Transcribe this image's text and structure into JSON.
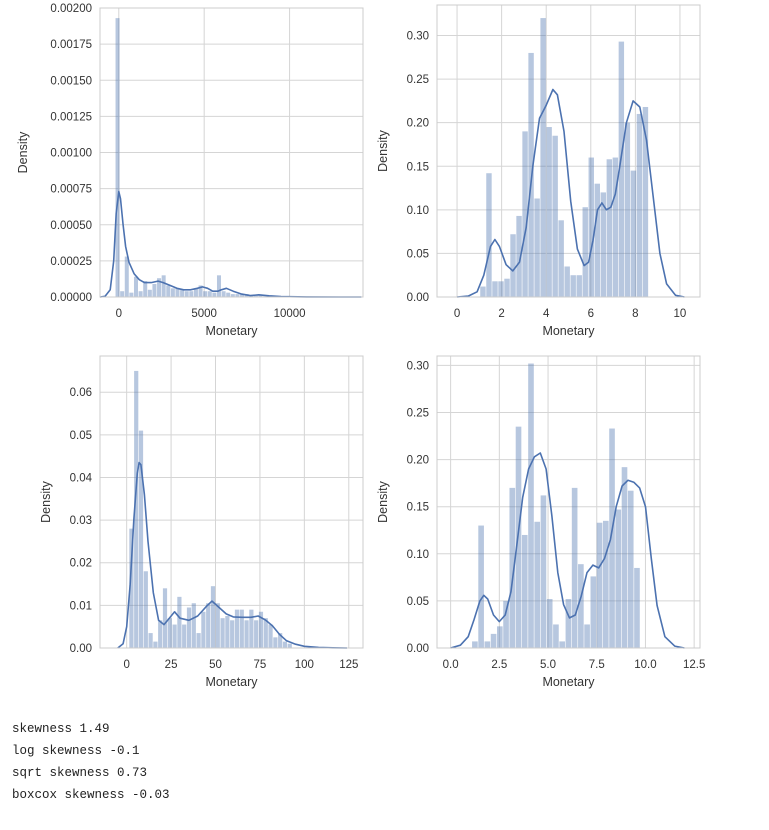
{
  "chart_data": [
    {
      "type": "histogram",
      "xlabel": "Monetary",
      "ylabel": "Density",
      "xlim": [
        -1100,
        14300
      ],
      "ylim": [
        0,
        0.002
      ],
      "xticks": [
        0,
        5000,
        10000
      ],
      "xtick_labels": [
        "0",
        "5000",
        "10000"
      ],
      "yticks": [
        0,
        0.00025,
        0.0005,
        0.00075,
        0.001,
        0.00125,
        0.0015,
        0.00175,
        0.002
      ],
      "ytick_labels": [
        "0.00000",
        "0.00025",
        "0.00050",
        "0.00075",
        "0.00100",
        "0.00125",
        "0.00150",
        "0.00175",
        "0.00200"
      ],
      "grid": true,
      "bin_edges": [
        -190,
        80,
        350,
        620,
        890,
        1160,
        1430,
        1700,
        1970,
        2240,
        2510,
        2780,
        3050,
        3320,
        3590,
        3860,
        4130,
        4400,
        4670,
        4940,
        5210,
        5480,
        5750,
        6020,
        6290,
        6560,
        6830,
        7100,
        7370,
        7640,
        7910,
        8180,
        8450,
        8720,
        8990,
        9260,
        9530,
        9800,
        10070
      ],
      "bin_heights": [
        0.00193,
        4e-05,
        0.00028,
        3e-05,
        0.00014,
        4e-05,
        0.00011,
        5e-05,
        9e-05,
        0.00013,
        0.00015,
        8e-05,
        6e-05,
        6e-05,
        5e-05,
        4e-05,
        4e-05,
        6e-05,
        8e-05,
        4e-05,
        4e-05,
        3e-05,
        0.00015,
        4e-05,
        3e-05,
        2e-05,
        2e-05,
        2e-05,
        2e-05,
        1e-05,
        1e-05,
        1e-05,
        5e-06,
        5e-06,
        5e-06,
        5e-06,
        3e-06,
        3e-06
      ],
      "kde_x": [
        -1200,
        -800,
        -500,
        -300,
        -150,
        0,
        100,
        250,
        400,
        600,
        900,
        1200,
        1500,
        1900,
        2300,
        2600,
        3000,
        3400,
        3800,
        4200,
        4600,
        4900,
        5200,
        5500,
        5800,
        6000,
        6300,
        6700,
        7200,
        7700,
        8200,
        8800,
        9500,
        11000,
        13000,
        14200
      ],
      "kde_y": [
        0.0,
        5e-06,
        5e-05,
        0.00025,
        0.00058,
        0.00073,
        0.00068,
        0.0005,
        0.00035,
        0.00024,
        0.00016,
        0.00012,
        0.0001,
        0.0001,
        0.00011,
        0.0001,
        8e-05,
        6e-05,
        5e-05,
        5e-05,
        6e-05,
        7e-05,
        6e-05,
        4e-05,
        4e-05,
        5e-05,
        6e-05,
        4e-05,
        2e-05,
        1e-05,
        1.5e-05,
        8e-06,
        3e-06,
        1e-06,
        0.0,
        0.0
      ]
    },
    {
      "type": "histogram",
      "xlabel": "Monetary",
      "ylabel": "Density",
      "xlim": [
        -0.9,
        10.9
      ],
      "ylim": [
        0,
        0.335
      ],
      "xticks": [
        0,
        2,
        4,
        6,
        8,
        10
      ],
      "xtick_labels": [
        "0",
        "2",
        "4",
        "6",
        "8",
        "10"
      ],
      "yticks": [
        0,
        0.05,
        0.1,
        0.15,
        0.2,
        0.25,
        0.3
      ],
      "ytick_labels": [
        "0.00",
        "0.05",
        "0.10",
        "0.15",
        "0.20",
        "0.25",
        "0.30"
      ],
      "grid": true,
      "bin_edges": [
        1.04,
        1.31,
        1.58,
        1.85,
        2.12,
        2.39,
        2.66,
        2.93,
        3.2,
        3.47,
        3.74,
        4.01,
        4.28,
        4.55,
        4.82,
        5.09,
        5.36,
        5.63,
        5.9,
        6.17,
        6.44,
        6.71,
        6.98,
        7.25,
        7.52,
        7.79,
        8.06,
        8.33,
        8.6,
        8.87,
        9.14
      ],
      "bin_heights": [
        0.012,
        0.142,
        0.018,
        0.018,
        0.021,
        0.072,
        0.093,
        0.19,
        0.28,
        0.113,
        0.32,
        0.195,
        0.185,
        0.088,
        0.035,
        0.025,
        0.025,
        0.103,
        0.16,
        0.13,
        0.12,
        0.158,
        0.16,
        0.293,
        0.2,
        0.145,
        0.21,
        0.218,
        0.0,
        0.0
      ],
      "kde_x": [
        0.0,
        0.5,
        0.9,
        1.2,
        1.5,
        1.7,
        1.9,
        2.2,
        2.5,
        2.8,
        3.1,
        3.4,
        3.7,
        4.0,
        4.3,
        4.5,
        4.8,
        5.1,
        5.4,
        5.7,
        5.9,
        6.1,
        6.3,
        6.5,
        6.7,
        6.9,
        7.1,
        7.3,
        7.6,
        7.9,
        8.2,
        8.5,
        8.8,
        9.1,
        9.4,
        9.8,
        10.2
      ],
      "kde_y": [
        0.0,
        0.001,
        0.006,
        0.025,
        0.058,
        0.066,
        0.058,
        0.037,
        0.03,
        0.04,
        0.08,
        0.15,
        0.205,
        0.22,
        0.238,
        0.232,
        0.19,
        0.11,
        0.055,
        0.036,
        0.04,
        0.065,
        0.1,
        0.108,
        0.1,
        0.103,
        0.118,
        0.15,
        0.2,
        0.225,
        0.218,
        0.18,
        0.115,
        0.05,
        0.015,
        0.002,
        0.0
      ]
    },
    {
      "type": "histogram",
      "xlabel": "Monetary",
      "ylabel": "Density",
      "xlim": [
        -15,
        133
      ],
      "ylim": [
        0,
        0.0685
      ],
      "xticks": [
        0,
        25,
        50,
        75,
        100,
        125
      ],
      "xtick_labels": [
        "0",
        "25",
        "50",
        "75",
        "100",
        "125"
      ],
      "yticks": [
        0,
        0.01,
        0.02,
        0.03,
        0.04,
        0.05,
        0.06
      ],
      "ytick_labels": [
        "0.00",
        "0.01",
        "0.02",
        "0.03",
        "0.04",
        "0.05",
        "0.06"
      ],
      "grid": true,
      "bin_edges": [
        1.5,
        4.2,
        6.9,
        9.6,
        12.3,
        15.0,
        17.7,
        20.4,
        23.1,
        25.8,
        28.5,
        31.2,
        33.9,
        36.6,
        39.3,
        42.0,
        44.7,
        47.4,
        50.1,
        52.8,
        55.5,
        58.2,
        60.9,
        63.6,
        66.3,
        69.0,
        71.7,
        74.4,
        77.1,
        79.8,
        82.5,
        85.2,
        87.9,
        90.6,
        93.3
      ],
      "bin_heights": [
        0.028,
        0.065,
        0.051,
        0.018,
        0.0035,
        0.0015,
        0.0065,
        0.014,
        0.007,
        0.0055,
        0.012,
        0.0055,
        0.0095,
        0.0105,
        0.0035,
        0.0085,
        0.0105,
        0.0145,
        0.0105,
        0.007,
        0.0075,
        0.0065,
        0.009,
        0.009,
        0.0065,
        0.009,
        0.0065,
        0.0085,
        0.007,
        0.0055,
        0.0025,
        0.0035,
        0.0015,
        0.001
      ],
      "kde_x": [
        -5,
        -2,
        0,
        2,
        4,
        6,
        7,
        8,
        10,
        12,
        15,
        18,
        21,
        24,
        27,
        30,
        35,
        40,
        45,
        48,
        52,
        56,
        60,
        65,
        70,
        74,
        78,
        82,
        86,
        90,
        95,
        100,
        108,
        116,
        124
      ],
      "kde_y": [
        0.0,
        0.001,
        0.005,
        0.015,
        0.03,
        0.041,
        0.0435,
        0.043,
        0.036,
        0.025,
        0.013,
        0.0065,
        0.0055,
        0.007,
        0.0085,
        0.007,
        0.0065,
        0.0075,
        0.0098,
        0.011,
        0.0095,
        0.008,
        0.0073,
        0.0072,
        0.0072,
        0.0075,
        0.0066,
        0.0052,
        0.0032,
        0.0017,
        0.0009,
        0.0004,
        0.00015,
        5e-05,
        0.0
      ]
    },
    {
      "type": "histogram",
      "xlabel": "Monetary",
      "ylabel": "Density",
      "xlim": [
        -0.7,
        12.8
      ],
      "ylim": [
        0,
        0.31
      ],
      "xticks": [
        0,
        2.5,
        5,
        7.5,
        10,
        12.5
      ],
      "xtick_labels": [
        "0.0",
        "2.5",
        "5.0",
        "7.5",
        "10.0",
        "12.5"
      ],
      "yticks": [
        0,
        0.05,
        0.1,
        0.15,
        0.2,
        0.25,
        0.3
      ],
      "ytick_labels": [
        "0.00",
        "0.05",
        "0.10",
        "0.15",
        "0.20",
        "0.25",
        "0.30"
      ],
      "grid": true,
      "bin_edges": [
        1.1,
        1.42,
        1.74,
        2.06,
        2.38,
        2.7,
        3.02,
        3.34,
        3.66,
        3.98,
        4.3,
        4.62,
        4.94,
        5.26,
        5.58,
        5.9,
        6.22,
        6.54,
        6.86,
        7.18,
        7.5,
        7.82,
        8.14,
        8.46,
        8.78,
        9.1,
        9.42,
        9.74,
        10.06,
        10.38
      ],
      "bin_heights": [
        0.007,
        0.13,
        0.007,
        0.015,
        0.023,
        0.05,
        0.17,
        0.235,
        0.12,
        0.302,
        0.134,
        0.162,
        0.052,
        0.025,
        0.007,
        0.052,
        0.17,
        0.089,
        0.025,
        0.076,
        0.133,
        0.135,
        0.233,
        0.147,
        0.192,
        0.167,
        0.085,
        0.0,
        0.0
      ],
      "kde_x": [
        0.0,
        0.5,
        0.9,
        1.2,
        1.5,
        1.7,
        1.9,
        2.2,
        2.5,
        2.8,
        3.1,
        3.4,
        3.7,
        4.0,
        4.3,
        4.6,
        4.9,
        5.2,
        5.5,
        5.8,
        6.1,
        6.4,
        6.7,
        7.0,
        7.3,
        7.6,
        7.9,
        8.2,
        8.5,
        8.8,
        9.1,
        9.4,
        9.7,
        10.0,
        10.3,
        10.6,
        11.0,
        11.5,
        12.0
      ],
      "kde_y": [
        0.0,
        0.003,
        0.012,
        0.03,
        0.05,
        0.056,
        0.052,
        0.035,
        0.028,
        0.035,
        0.06,
        0.11,
        0.16,
        0.19,
        0.203,
        0.207,
        0.19,
        0.14,
        0.08,
        0.046,
        0.032,
        0.035,
        0.055,
        0.08,
        0.088,
        0.085,
        0.095,
        0.115,
        0.15,
        0.172,
        0.178,
        0.176,
        0.17,
        0.15,
        0.095,
        0.045,
        0.012,
        0.002,
        0.0
      ]
    }
  ],
  "output": {
    "line1": "skewness 1.49",
    "line2": "log skewness -0.1",
    "line3": "sqrt skewness 0.73",
    "line4": "boxcox skewness -0.03"
  },
  "colors": {
    "bar": "#4c72b0",
    "bar_opacity": "0.4",
    "kde": "#4c72b0",
    "grid": "#d5d5d5",
    "frame": "#cccccc",
    "text": "#333333"
  }
}
